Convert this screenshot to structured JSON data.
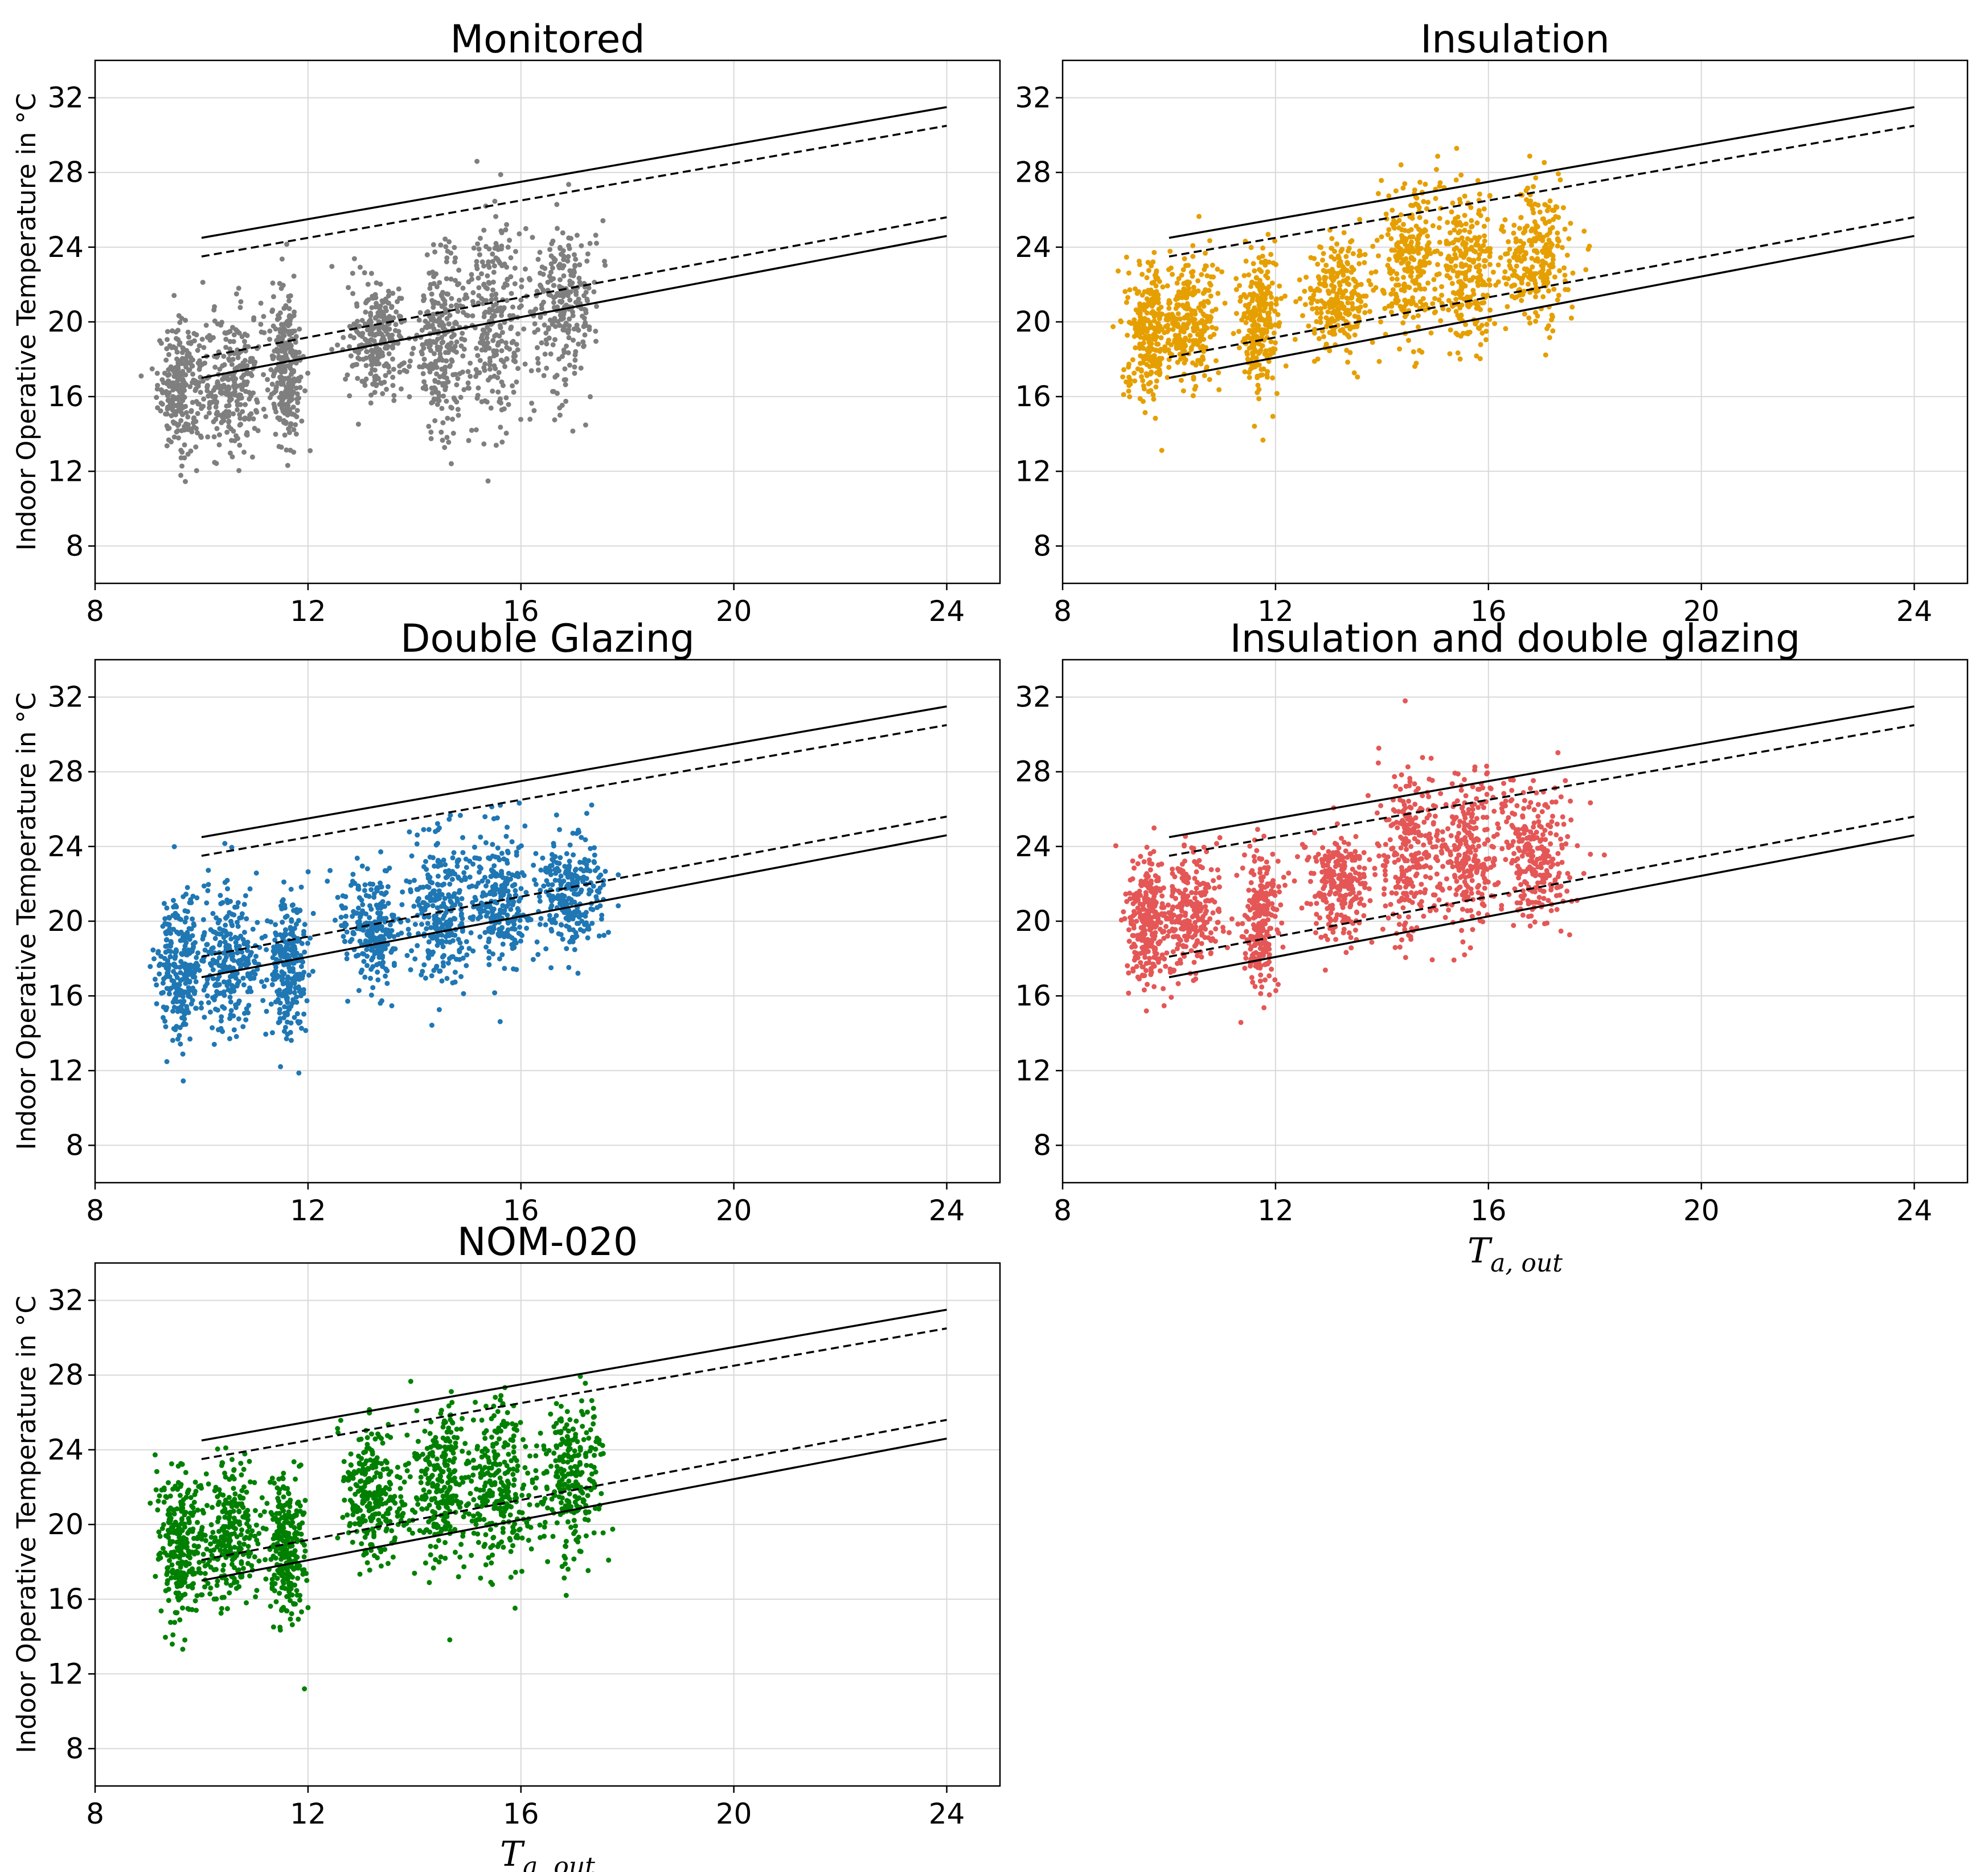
{
  "chart_data": [
    {
      "type": "scatter",
      "title": "Monitored",
      "xlabel": "",
      "ylabel": "Indoor Operative Temperature in °C",
      "xlim": [
        8,
        25
      ],
      "ylim": [
        6,
        34
      ],
      "xticks": [
        "8",
        "12",
        "16",
        "20",
        "24"
      ],
      "yticks": [
        "8",
        "12",
        "16",
        "20",
        "24",
        "28",
        "32"
      ],
      "grid": true,
      "color": "#7f7f7f",
      "point_clusters": [
        {
          "x": 9.6,
          "y": 16.5,
          "spread_x": 0.35,
          "spread_y": 2.2
        },
        {
          "x": 10.6,
          "y": 16.8,
          "spread_x": 0.5,
          "spread_y": 2.6
        },
        {
          "x": 11.6,
          "y": 17.5,
          "spread_x": 0.25,
          "spread_y": 2.8
        },
        {
          "x": 13.3,
          "y": 19.0,
          "spread_x": 0.45,
          "spread_y": 2.0
        },
        {
          "x": 14.5,
          "y": 19.0,
          "spread_x": 0.4,
          "spread_y": 3.2
        },
        {
          "x": 15.5,
          "y": 20.0,
          "spread_x": 0.5,
          "spread_y": 3.5
        },
        {
          "x": 16.8,
          "y": 21.0,
          "spread_x": 0.5,
          "spread_y": 3.0
        }
      ],
      "series": [
        {
          "name": "upper limit",
          "style": "solid",
          "x": [
            10,
            24
          ],
          "y": [
            24.5,
            31.5
          ]
        },
        {
          "name": "upper limit (dashed)",
          "style": "dashed",
          "x": [
            10,
            24
          ],
          "y": [
            23.5,
            30.5
          ]
        },
        {
          "name": "lower limit (dashed)",
          "style": "dashed",
          "x": [
            10,
            24
          ],
          "y": [
            18.1,
            25.6
          ]
        },
        {
          "name": "lower limit",
          "style": "solid",
          "x": [
            10,
            24
          ],
          "y": [
            17.0,
            24.6
          ]
        }
      ]
    },
    {
      "type": "scatter",
      "title": "Insulation",
      "xlabel": "",
      "ylabel": "",
      "xlim": [
        8,
        25
      ],
      "ylim": [
        6,
        34
      ],
      "xticks": [
        "8",
        "12",
        "16",
        "20",
        "24"
      ],
      "yticks": [
        "8",
        "12",
        "16",
        "20",
        "24",
        "28",
        "32"
      ],
      "grid": true,
      "color": "#e69f00",
      "point_clusters": [
        {
          "x": 9.6,
          "y": 19.5,
          "spread_x": 0.35,
          "spread_y": 2.4
        },
        {
          "x": 10.4,
          "y": 20.0,
          "spread_x": 0.45,
          "spread_y": 2.3
        },
        {
          "x": 11.7,
          "y": 20.0,
          "spread_x": 0.3,
          "spread_y": 2.3
        },
        {
          "x": 13.2,
          "y": 21.5,
          "spread_x": 0.5,
          "spread_y": 2.0
        },
        {
          "x": 14.5,
          "y": 23.0,
          "spread_x": 0.45,
          "spread_y": 3.0
        },
        {
          "x": 15.6,
          "y": 23.0,
          "spread_x": 0.5,
          "spread_y": 3.0
        },
        {
          "x": 16.9,
          "y": 23.5,
          "spread_x": 0.55,
          "spread_y": 2.6
        }
      ],
      "series": [
        {
          "name": "upper limit",
          "style": "solid",
          "x": [
            10,
            24
          ],
          "y": [
            24.5,
            31.5
          ]
        },
        {
          "name": "upper limit (dashed)",
          "style": "dashed",
          "x": [
            10,
            24
          ],
          "y": [
            23.5,
            30.5
          ]
        },
        {
          "name": "lower limit (dashed)",
          "style": "dashed",
          "x": [
            10,
            24
          ],
          "y": [
            18.1,
            25.6
          ]
        },
        {
          "name": "lower limit",
          "style": "solid",
          "x": [
            10,
            24
          ],
          "y": [
            17.0,
            24.6
          ]
        }
      ]
    },
    {
      "type": "scatter",
      "title": "Double Glazing",
      "xlabel": "",
      "ylabel": "Indoor Operative Temperature in °C",
      "xlim": [
        8,
        25
      ],
      "ylim": [
        6,
        34
      ],
      "xticks": [
        "8",
        "12",
        "16",
        "20",
        "24"
      ],
      "yticks": [
        "8",
        "12",
        "16",
        "20",
        "24",
        "28",
        "32"
      ],
      "grid": true,
      "color": "#1f77b4",
      "point_clusters": [
        {
          "x": 9.6,
          "y": 17.5,
          "spread_x": 0.35,
          "spread_y": 2.5
        },
        {
          "x": 10.5,
          "y": 18.0,
          "spread_x": 0.5,
          "spread_y": 2.5
        },
        {
          "x": 11.6,
          "y": 17.5,
          "spread_x": 0.3,
          "spread_y": 2.5
        },
        {
          "x": 13.2,
          "y": 19.5,
          "spread_x": 0.5,
          "spread_y": 2.0
        },
        {
          "x": 14.5,
          "y": 20.5,
          "spread_x": 0.45,
          "spread_y": 2.8
        },
        {
          "x": 15.6,
          "y": 21.0,
          "spread_x": 0.5,
          "spread_y": 2.5
        },
        {
          "x": 16.9,
          "y": 21.5,
          "spread_x": 0.55,
          "spread_y": 2.0
        }
      ],
      "series": [
        {
          "name": "upper limit",
          "style": "solid",
          "x": [
            10,
            24
          ],
          "y": [
            24.5,
            31.5
          ]
        },
        {
          "name": "upper limit (dashed)",
          "style": "dashed",
          "x": [
            10,
            24
          ],
          "y": [
            23.5,
            30.5
          ]
        },
        {
          "name": "lower limit (dashed)",
          "style": "dashed",
          "x": [
            10,
            24
          ],
          "y": [
            18.1,
            25.6
          ]
        },
        {
          "name": "lower limit",
          "style": "solid",
          "x": [
            10,
            24
          ],
          "y": [
            17.0,
            24.6
          ]
        }
      ]
    },
    {
      "type": "scatter",
      "title": "Insulation and double glazing",
      "xlabel_main": "T",
      "xlabel_sub": "a, out",
      "ylabel": "",
      "xlim": [
        8,
        25
      ],
      "ylim": [
        6,
        34
      ],
      "xticks": [
        "8",
        "12",
        "16",
        "20",
        "24"
      ],
      "yticks": [
        "8",
        "12",
        "16",
        "20",
        "24",
        "28",
        "32"
      ],
      "grid": true,
      "color": "#e45756",
      "point_clusters": [
        {
          "x": 9.6,
          "y": 20.0,
          "spread_x": 0.35,
          "spread_y": 2.5
        },
        {
          "x": 10.4,
          "y": 20.5,
          "spread_x": 0.45,
          "spread_y": 2.3
        },
        {
          "x": 11.7,
          "y": 20.0,
          "spread_x": 0.3,
          "spread_y": 2.3
        },
        {
          "x": 13.2,
          "y": 22.0,
          "spread_x": 0.5,
          "spread_y": 2.0
        },
        {
          "x": 14.5,
          "y": 23.5,
          "spread_x": 0.45,
          "spread_y": 3.0
        },
        {
          "x": 15.6,
          "y": 23.5,
          "spread_x": 0.5,
          "spread_y": 3.0
        },
        {
          "x": 16.9,
          "y": 23.5,
          "spread_x": 0.55,
          "spread_y": 2.6
        }
      ],
      "series": [
        {
          "name": "upper limit",
          "style": "solid",
          "x": [
            10,
            24
          ],
          "y": [
            24.5,
            31.5
          ]
        },
        {
          "name": "upper limit (dashed)",
          "style": "dashed",
          "x": [
            10,
            24
          ],
          "y": [
            23.5,
            30.5
          ]
        },
        {
          "name": "lower limit (dashed)",
          "style": "dashed",
          "x": [
            10,
            24
          ],
          "y": [
            18.1,
            25.6
          ]
        },
        {
          "name": "lower limit",
          "style": "solid",
          "x": [
            10,
            24
          ],
          "y": [
            17.0,
            24.6
          ]
        }
      ]
    },
    {
      "type": "scatter",
      "title": "NOM-020",
      "xlabel_main": "T",
      "xlabel_sub": "a, out",
      "ylabel": "Indoor Operative Temperature in °C",
      "xlim": [
        8,
        25
      ],
      "ylim": [
        6,
        34
      ],
      "xticks": [
        "8",
        "12",
        "16",
        "20",
        "24"
      ],
      "yticks": [
        "8",
        "12",
        "16",
        "20",
        "24",
        "28",
        "32"
      ],
      "grid": true,
      "color": "#008000",
      "point_clusters": [
        {
          "x": 9.6,
          "y": 19.0,
          "spread_x": 0.35,
          "spread_y": 2.7
        },
        {
          "x": 10.5,
          "y": 19.5,
          "spread_x": 0.5,
          "spread_y": 2.5
        },
        {
          "x": 11.6,
          "y": 19.0,
          "spread_x": 0.3,
          "spread_y": 2.5
        },
        {
          "x": 13.2,
          "y": 21.5,
          "spread_x": 0.5,
          "spread_y": 2.3
        },
        {
          "x": 14.5,
          "y": 22.0,
          "spread_x": 0.45,
          "spread_y": 3.0
        },
        {
          "x": 15.6,
          "y": 22.0,
          "spread_x": 0.5,
          "spread_y": 3.0
        },
        {
          "x": 16.9,
          "y": 22.5,
          "spread_x": 0.55,
          "spread_y": 2.6
        }
      ],
      "series": [
        {
          "name": "upper limit",
          "style": "solid",
          "x": [
            10,
            24
          ],
          "y": [
            24.5,
            31.5
          ]
        },
        {
          "name": "upper limit (dashed)",
          "style": "dashed",
          "x": [
            10,
            24
          ],
          "y": [
            23.5,
            30.5
          ]
        },
        {
          "name": "lower limit (dashed)",
          "style": "dashed",
          "x": [
            10,
            24
          ],
          "y": [
            18.1,
            25.6
          ]
        },
        {
          "name": "lower limit",
          "style": "solid",
          "x": [
            10,
            24
          ],
          "y": [
            17.0,
            24.6
          ]
        }
      ]
    }
  ]
}
